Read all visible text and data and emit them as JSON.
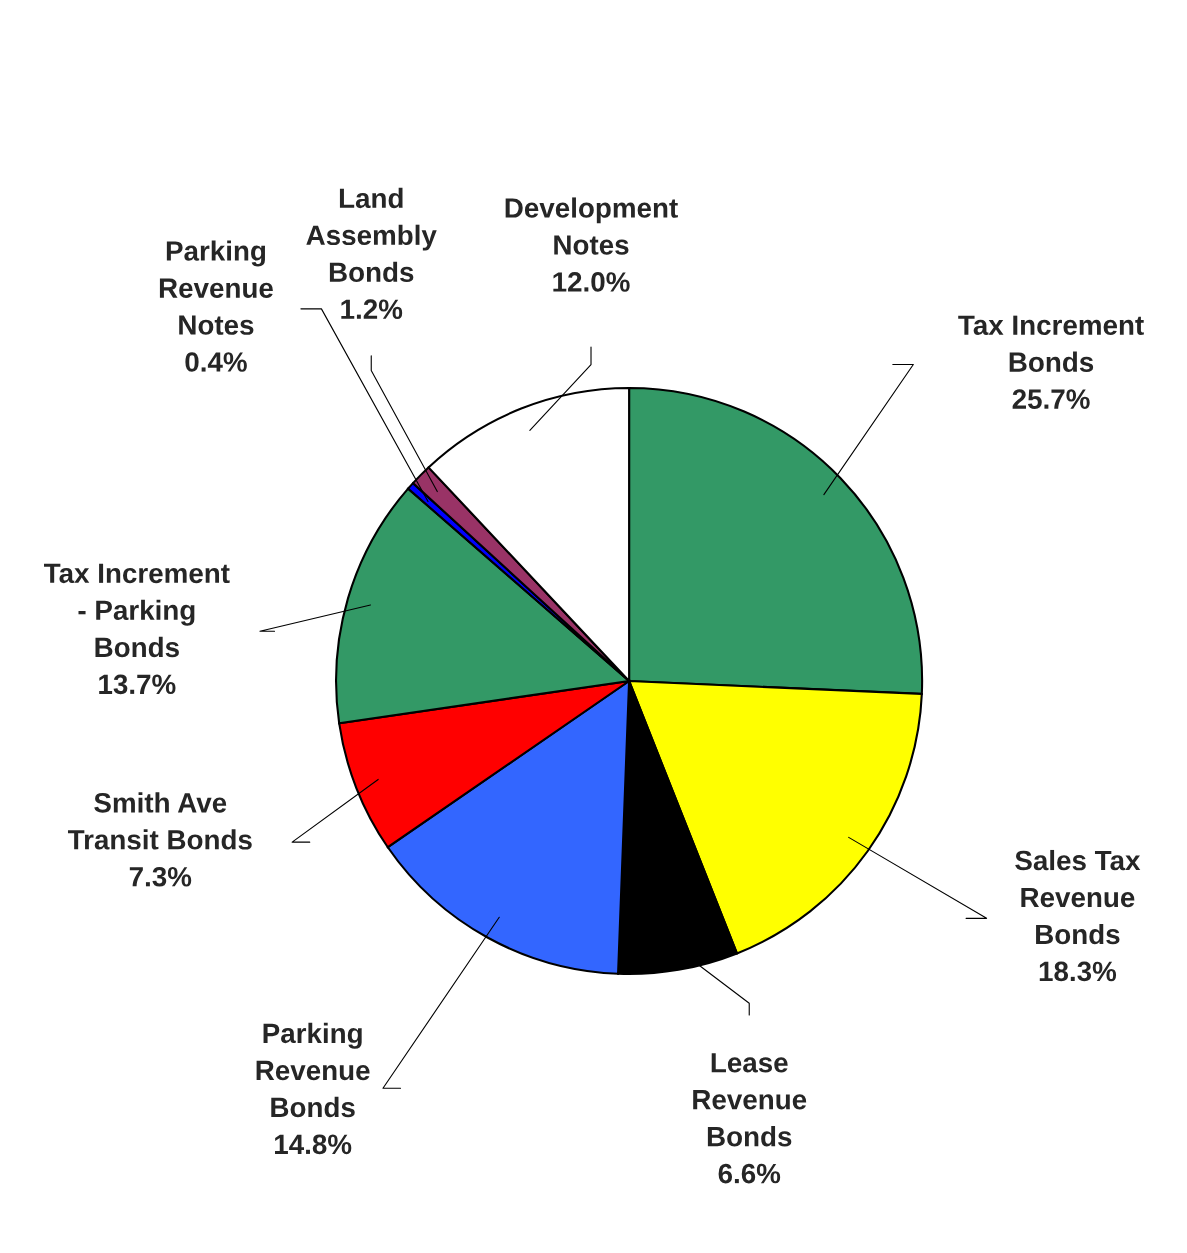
{
  "chart_data": {
    "type": "pie",
    "categories": [
      "Tax Increment\nBonds",
      "Sales Tax\nRevenue\nBonds",
      "Lease\nRevenue\nBonds",
      "Parking\nRevenue\nBonds",
      "Smith Ave\nTransit Bonds",
      "Tax Increment\n- Parking\nBonds",
      "Parking\nRevenue\nNotes",
      "Land\nAssembly\nBonds",
      "Development\nNotes"
    ],
    "values": [
      25.7,
      18.3,
      6.6,
      14.8,
      7.3,
      13.7,
      0.4,
      1.2,
      12.0
    ],
    "value_labels": [
      "25.7%",
      "18.3%",
      "6.6%",
      "14.8%",
      "7.3%",
      "13.7%",
      "0.4%",
      "1.2%",
      "12.0%"
    ],
    "colors": [
      "#339966",
      "#ffff00",
      "#000000",
      "#3366ff",
      "#ff0000",
      "#339966",
      "#0000ff",
      "#993366",
      "#ffffff"
    ]
  }
}
